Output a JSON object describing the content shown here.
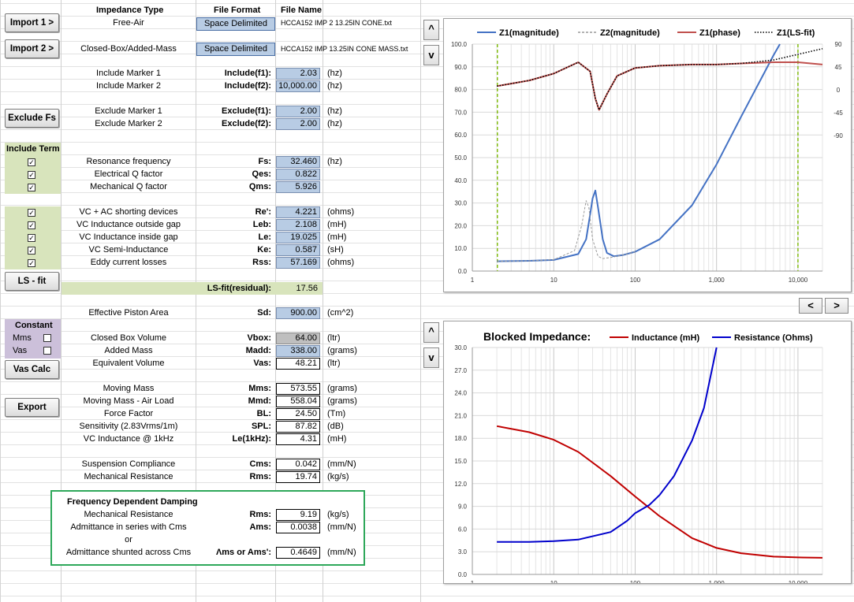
{
  "headers": {
    "impedance_type": "Impedance Type",
    "file_format": "File Format",
    "file_name": "File Name"
  },
  "buttons": {
    "import1": "Import 1 >",
    "import2": "Import 2 >",
    "exclude_fs": "Exclude Fs",
    "ls_fit": "LS - fit",
    "vas_calc": "Vas Calc",
    "export": "Export",
    "up": "^",
    "down": "v",
    "prev": "<",
    "next": ">"
  },
  "imports": [
    {
      "type": "Free-Air",
      "format": "Space Delimited",
      "file": "HCCA152 IMP 2 13.25IN CONE.txt"
    },
    {
      "type": "Closed-Box/Added-Mass",
      "format": "Space Delimited",
      "file": "HCCA152 IMP 13.25IN CONE MASS.txt"
    }
  ],
  "markers": [
    {
      "label": "Include Marker 1",
      "sym": "Include(f1):",
      "value": "2.03",
      "unit": "(hz)"
    },
    {
      "label": "Include Marker 2",
      "sym": "Include(f2):",
      "value": "10,000.00",
      "unit": "(hz)"
    },
    {
      "label": "Exclude Marker 1",
      "sym": "Exclude(f1):",
      "value": "2.00",
      "unit": "(hz)"
    },
    {
      "label": "Exclude Marker 2",
      "sym": "Exclude(f2):",
      "value": "2.00",
      "unit": "(hz)"
    }
  ],
  "include_term_label": "Include Term",
  "fs_params": [
    {
      "label": "Resonance frequency",
      "sym": "Fs:",
      "value": "32.460",
      "unit": "(hz)",
      "checked": true
    },
    {
      "label": "Electrical Q factor",
      "sym": "Qes:",
      "value": "0.822",
      "unit": "",
      "checked": true
    },
    {
      "label": "Mechanical Q factor",
      "sym": "Qms:",
      "value": "5.926",
      "unit": "",
      "checked": true
    }
  ],
  "vc_params": [
    {
      "label": "VC + AC shorting devices",
      "sym": "Re':",
      "value": "4.221",
      "unit": "(ohms)",
      "checked": true
    },
    {
      "label": "VC Inductance outside gap",
      "sym": "Leb:",
      "value": "2.108",
      "unit": "(mH)",
      "checked": true
    },
    {
      "label": "VC Inductance inside gap",
      "sym": "Le:",
      "value": "19.025",
      "unit": "(mH)",
      "checked": true
    },
    {
      "label": "VC Semi-Inductance",
      "sym": "Ke:",
      "value": "0.587",
      "unit": "(sH)",
      "checked": true
    },
    {
      "label": "Eddy current losses",
      "sym": "Rss:",
      "value": "57.169",
      "unit": "(ohms)",
      "checked": true
    }
  ],
  "ls_fit": {
    "sym": "LS-fit(residual):",
    "value": "17.56"
  },
  "piston": {
    "label": "Effective Piston Area",
    "sym": "Sd:",
    "value": "900.00",
    "unit": "(cm^2)"
  },
  "constant": {
    "title": "Constant",
    "mms": "Mms",
    "vas": "Vas"
  },
  "box_params": [
    {
      "label": "Closed Box Volume",
      "sym": "Vbox:",
      "value": "64.00",
      "unit": "(ltr)"
    },
    {
      "label": "Added Mass",
      "sym": "Madd:",
      "value": "338.00",
      "unit": "(grams)"
    },
    {
      "label": "Equivalent Volume",
      "sym": "Vas:",
      "value": "48.21",
      "unit": "(ltr)"
    }
  ],
  "mass_params": [
    {
      "label": "Moving Mass",
      "sym": "Mms:",
      "value": "573.55",
      "unit": "(grams)"
    },
    {
      "label": "Moving Mass - Air Load",
      "sym": "Mmd:",
      "value": "558.04",
      "unit": "(grams)"
    },
    {
      "label": "Force Factor",
      "sym": "BL:",
      "value": "24.50",
      "unit": "(Tm)"
    },
    {
      "label": "Sensitivity (2.83Vrms/1m)",
      "sym": "SPL:",
      "value": "87.82",
      "unit": "(dB)"
    },
    {
      "label": "VC Inductance @ 1kHz",
      "sym": "Le(1kHz):",
      "value": "4.31",
      "unit": "(mH)"
    }
  ],
  "susp_params": [
    {
      "label": "Suspension Compliance",
      "sym": "Cms:",
      "value": "0.042",
      "unit": "(mm/N)"
    },
    {
      "label": "Mechanical Resistance",
      "sym": "Rms:",
      "value": "19.74",
      "unit": "(kg/s)"
    }
  ],
  "fdd": {
    "title": "Frequency Dependent Damping",
    "rows": [
      {
        "label": "Mechanical Resistance",
        "sym": "Rms:",
        "value": "9.19",
        "unit": "(kg/s)"
      },
      {
        "label": "Admittance in series with Cms",
        "sym": "Ams:",
        "value": "0.0038",
        "unit": "(mm/N)"
      },
      {
        "label": "or",
        "sym": "",
        "value": "",
        "unit": ""
      },
      {
        "label": "Admittance shunted across Cms",
        "sym": "Λms or Ams':",
        "value": "0.4649",
        "unit": "(mm/N)"
      }
    ]
  },
  "chart_data": [
    {
      "type": "line",
      "title": "",
      "x_scale": "log",
      "xlim": [
        1,
        20000
      ],
      "x_ticks": [
        "1",
        "10",
        "100",
        "1,000",
        "10,000"
      ],
      "ylim": [
        0,
        100
      ],
      "y_ticks": [
        "0.0",
        "10.0",
        "20.0",
        "30.0",
        "40.0",
        "50.0",
        "60.0",
        "70.0",
        "80.0",
        "90.0",
        "100.0"
      ],
      "y2lim": [
        -90,
        90
      ],
      "y2_ticks": [
        "90",
        "45",
        "0",
        "-45",
        "-90"
      ],
      "legend": "top",
      "grid": true,
      "markers_x": [
        2.03,
        10000
      ],
      "series": [
        {
          "name": "Z1(magnitude)",
          "color": "#4472c4",
          "style": "solid",
          "x": [
            2,
            5,
            10,
            20,
            25,
            28,
            30,
            32.46,
            35,
            40,
            45,
            55,
            70,
            100,
            200,
            500,
            1000,
            2000,
            5000,
            6000
          ],
          "y": [
            4.3,
            4.5,
            4.9,
            7.5,
            14,
            25,
            32,
            35.5,
            28,
            14,
            8,
            6.5,
            7,
            8.5,
            14,
            29,
            47,
            68,
            95,
            100
          ]
        },
        {
          "name": "Z2(magnitude)",
          "color": "#999999",
          "style": "dashed",
          "x": [
            2,
            5,
            10,
            18,
            22,
            25,
            27,
            30,
            35,
            40,
            50,
            70,
            100
          ],
          "y": [
            4.3,
            4.5,
            5,
            9,
            20,
            31,
            28,
            14,
            6.5,
            5.5,
            6,
            7,
            8.5
          ]
        },
        {
          "name": "Z1(phase)",
          "color": "#c0504d",
          "style": "solid",
          "x": [
            2,
            5,
            10,
            20,
            28,
            32.46,
            36,
            45,
            60,
            100,
            200,
            500,
            1000,
            2000,
            5000,
            10000,
            20000
          ],
          "y": [
            81.5,
            84,
            87,
            92,
            88,
            76,
            71,
            78,
            86,
            89.5,
            90.5,
            91,
            91,
            91.5,
            92,
            92,
            91
          ]
        },
        {
          "name": "Z1(LS-fit)",
          "color": "#000000",
          "style": "dotted",
          "x": [
            2,
            5,
            10,
            20,
            28,
            32.46,
            36,
            45,
            60,
            100,
            200,
            500,
            1000,
            2000,
            5000,
            10000,
            20000
          ],
          "y": [
            81.5,
            84,
            87,
            92,
            88,
            76,
            71,
            78,
            86,
            89.5,
            90.5,
            91,
            91,
            91.5,
            93,
            95.5,
            98
          ]
        }
      ]
    },
    {
      "type": "line",
      "title": "Blocked Impedance:",
      "x_scale": "log",
      "xlim": [
        1,
        20000
      ],
      "x_ticks": [
        "1",
        "10",
        "100",
        "1,000",
        "10,000"
      ],
      "ylim": [
        0,
        30
      ],
      "y_ticks": [
        "0.0",
        "3.0",
        "6.0",
        "9.0",
        "12.0",
        "15.0",
        "18.0",
        "21.0",
        "24.0",
        "27.0",
        "30.0"
      ],
      "legend": "top",
      "grid": true,
      "series": [
        {
          "name": "Inductance (mH)",
          "color": "#c00000",
          "style": "solid",
          "x": [
            2,
            5,
            10,
            20,
            50,
            100,
            200,
            500,
            1000,
            2000,
            5000,
            10000,
            20000
          ],
          "y": [
            19.6,
            18.8,
            17.8,
            16.2,
            13,
            10.3,
            7.7,
            4.8,
            3.5,
            2.8,
            2.35,
            2.25,
            2.2
          ]
        },
        {
          "name": "Resistance (Ohms)",
          "color": "#0000cc",
          "style": "solid",
          "x": [
            2,
            5,
            10,
            20,
            50,
            80,
            100,
            150,
            200,
            300,
            500,
            700,
            1000
          ],
          "y": [
            4.3,
            4.3,
            4.4,
            4.6,
            5.6,
            7.1,
            8.1,
            9.2,
            10.5,
            13,
            17.7,
            22,
            30
          ]
        }
      ]
    }
  ]
}
